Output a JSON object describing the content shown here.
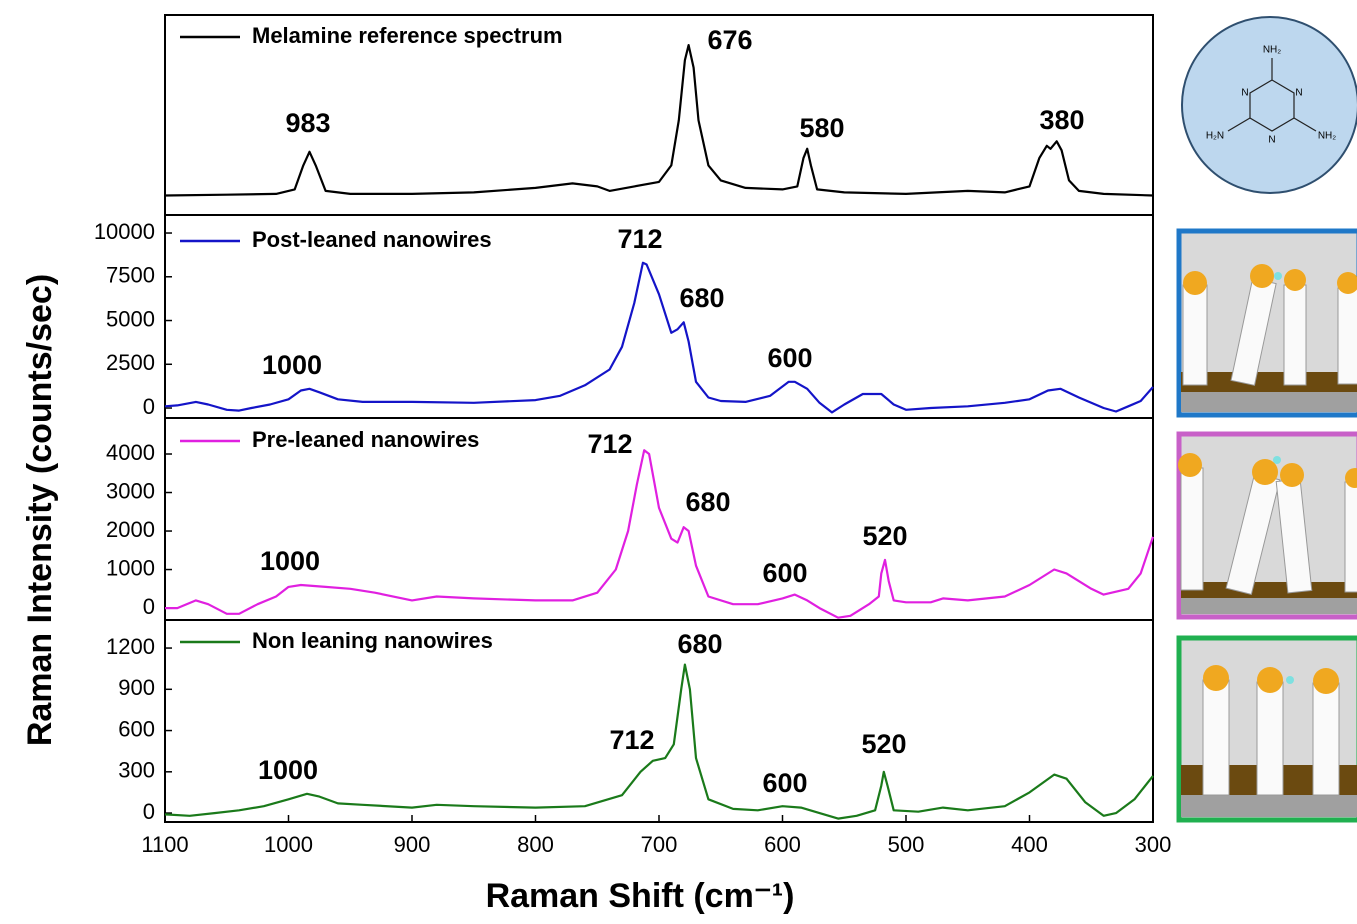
{
  "chart_data": [
    {
      "type": "line",
      "xlim": [
        1100,
        300
      ],
      "ylim": [
        -13,
        120
      ],
      "x": [
        1100,
        1050,
        1010,
        995,
        988,
        983,
        978,
        970,
        950,
        900,
        850,
        800,
        770,
        750,
        740,
        720,
        700,
        690,
        684,
        679,
        676,
        672,
        668,
        660,
        650,
        630,
        600,
        588,
        583,
        580,
        577,
        572,
        550,
        500,
        450,
        420,
        400,
        392,
        386,
        383,
        378,
        374,
        368,
        360,
        340,
        300
      ],
      "series": [
        {
          "name": "Melamine reference spectrum",
          "color": "#000000",
          "values": [
            0,
            0.5,
            1,
            4,
            20,
            29,
            20,
            3,
            1,
            1,
            2,
            5,
            8,
            6,
            3,
            6,
            9,
            20,
            50,
            90,
            100,
            85,
            50,
            20,
            10,
            5,
            4,
            6,
            25,
            31,
            20,
            4,
            2,
            1,
            3,
            2,
            6,
            25,
            33,
            31,
            36,
            30,
            10,
            3,
            1,
            0
          ]
        }
      ],
      "peak_labels": [
        "983",
        "676",
        "580",
        "380"
      ]
    },
    {
      "type": "line",
      "xlim": [
        1100,
        300
      ],
      "ylim": [
        -570,
        11030
      ],
      "yticks": [
        0,
        2500,
        5000,
        7500,
        10000
      ],
      "x": [
        1100,
        1090,
        1075,
        1065,
        1050,
        1040,
        1030,
        1015,
        1000,
        990,
        983,
        975,
        960,
        940,
        900,
        850,
        800,
        780,
        760,
        740,
        730,
        720,
        713,
        710,
        700,
        690,
        685,
        680,
        676,
        670,
        660,
        650,
        630,
        610,
        595,
        590,
        580,
        570,
        560,
        550,
        535,
        520,
        510,
        500,
        480,
        450,
        420,
        400,
        385,
        375,
        360,
        340,
        330,
        320,
        310,
        300
      ],
      "series": [
        {
          "name": "Post-leaned nanowires",
          "color": "#1414c8",
          "values": [
            100,
            150,
            350,
            200,
            -100,
            -150,
            0,
            200,
            500,
            1000,
            1100,
            900,
            500,
            350,
            350,
            300,
            450,
            700,
            1300,
            2200,
            3500,
            6000,
            8300,
            8200,
            6500,
            4300,
            4500,
            4900,
            3800,
            1500,
            600,
            400,
            350,
            700,
            1500,
            1500,
            1100,
            300,
            -250,
            200,
            800,
            800,
            200,
            -100,
            0,
            100,
            300,
            500,
            1000,
            1100,
            600,
            0,
            -200,
            100,
            400,
            1200
          ]
        }
      ],
      "peak_labels": [
        "1000",
        "712",
        "680",
        "600"
      ]
    },
    {
      "type": "line",
      "xlim": [
        1100,
        300
      ],
      "ylim": [
        -310,
        4935
      ],
      "yticks": [
        0,
        1000,
        2000,
        3000,
        4000
      ],
      "x": [
        1100,
        1090,
        1075,
        1065,
        1050,
        1040,
        1025,
        1010,
        1000,
        990,
        970,
        950,
        930,
        900,
        880,
        850,
        800,
        770,
        750,
        735,
        725,
        718,
        712,
        708,
        700,
        690,
        685,
        680,
        676,
        670,
        660,
        640,
        620,
        600,
        590,
        580,
        570,
        555,
        545,
        530,
        522,
        520,
        517,
        514,
        510,
        500,
        480,
        470,
        450,
        420,
        400,
        380,
        370,
        350,
        340,
        320,
        310,
        300
      ],
      "series": [
        {
          "name": "Pre-leaned nanowires",
          "color": "#e020e0",
          "values": [
            0,
            0,
            200,
            100,
            -150,
            -150,
            100,
            300,
            550,
            600,
            550,
            500,
            400,
            200,
            300,
            250,
            200,
            200,
            400,
            1000,
            2000,
            3200,
            4100,
            4000,
            2600,
            1800,
            1700,
            2100,
            2000,
            1100,
            300,
            100,
            100,
            250,
            350,
            200,
            0,
            -250,
            -200,
            100,
            300,
            900,
            1250,
            700,
            200,
            150,
            150,
            250,
            200,
            300,
            600,
            1000,
            900,
            500,
            350,
            500,
            900,
            1850
          ]
        }
      ],
      "peak_labels": [
        "712",
        "680",
        "1000",
        "600",
        "520"
      ]
    },
    {
      "type": "line",
      "xlim": [
        1100,
        300
      ],
      "ylim": [
        -65,
        1404
      ],
      "yticks": [
        0,
        300,
        600,
        900,
        1200
      ],
      "xticks": [
        1100,
        1000,
        900,
        800,
        700,
        600,
        500,
        400,
        300
      ],
      "x": [
        1100,
        1080,
        1060,
        1040,
        1020,
        1000,
        985,
        975,
        960,
        940,
        900,
        880,
        850,
        800,
        760,
        730,
        715,
        705,
        695,
        688,
        682,
        679,
        675,
        670,
        660,
        640,
        620,
        600,
        585,
        570,
        555,
        540,
        525,
        520,
        518,
        515,
        510,
        490,
        470,
        450,
        420,
        400,
        380,
        370,
        355,
        340,
        330,
        315,
        300
      ],
      "series": [
        {
          "name": "Non leaning nanowires",
          "color": "#1a7a1a",
          "values": [
            -10,
            -20,
            0,
            20,
            50,
            100,
            140,
            120,
            70,
            60,
            40,
            60,
            50,
            40,
            50,
            130,
            300,
            380,
            400,
            500,
            900,
            1080,
            900,
            400,
            100,
            30,
            20,
            50,
            40,
            0,
            -40,
            -20,
            20,
            200,
            300,
            200,
            20,
            10,
            40,
            20,
            50,
            150,
            280,
            250,
            80,
            -20,
            0,
            100,
            270
          ]
        }
      ],
      "peak_labels": [
        "680",
        "712",
        "1000",
        "600",
        "520"
      ]
    }
  ],
  "shared_axes": {
    "xlabel": "Raman Shift (cm⁻¹)",
    "ylabel": "Raman Intensity (counts/sec)"
  },
  "molecule": {
    "atoms": [
      "NH₂",
      "N",
      "N",
      "N",
      "H₂N",
      "NH₂"
    ]
  }
}
